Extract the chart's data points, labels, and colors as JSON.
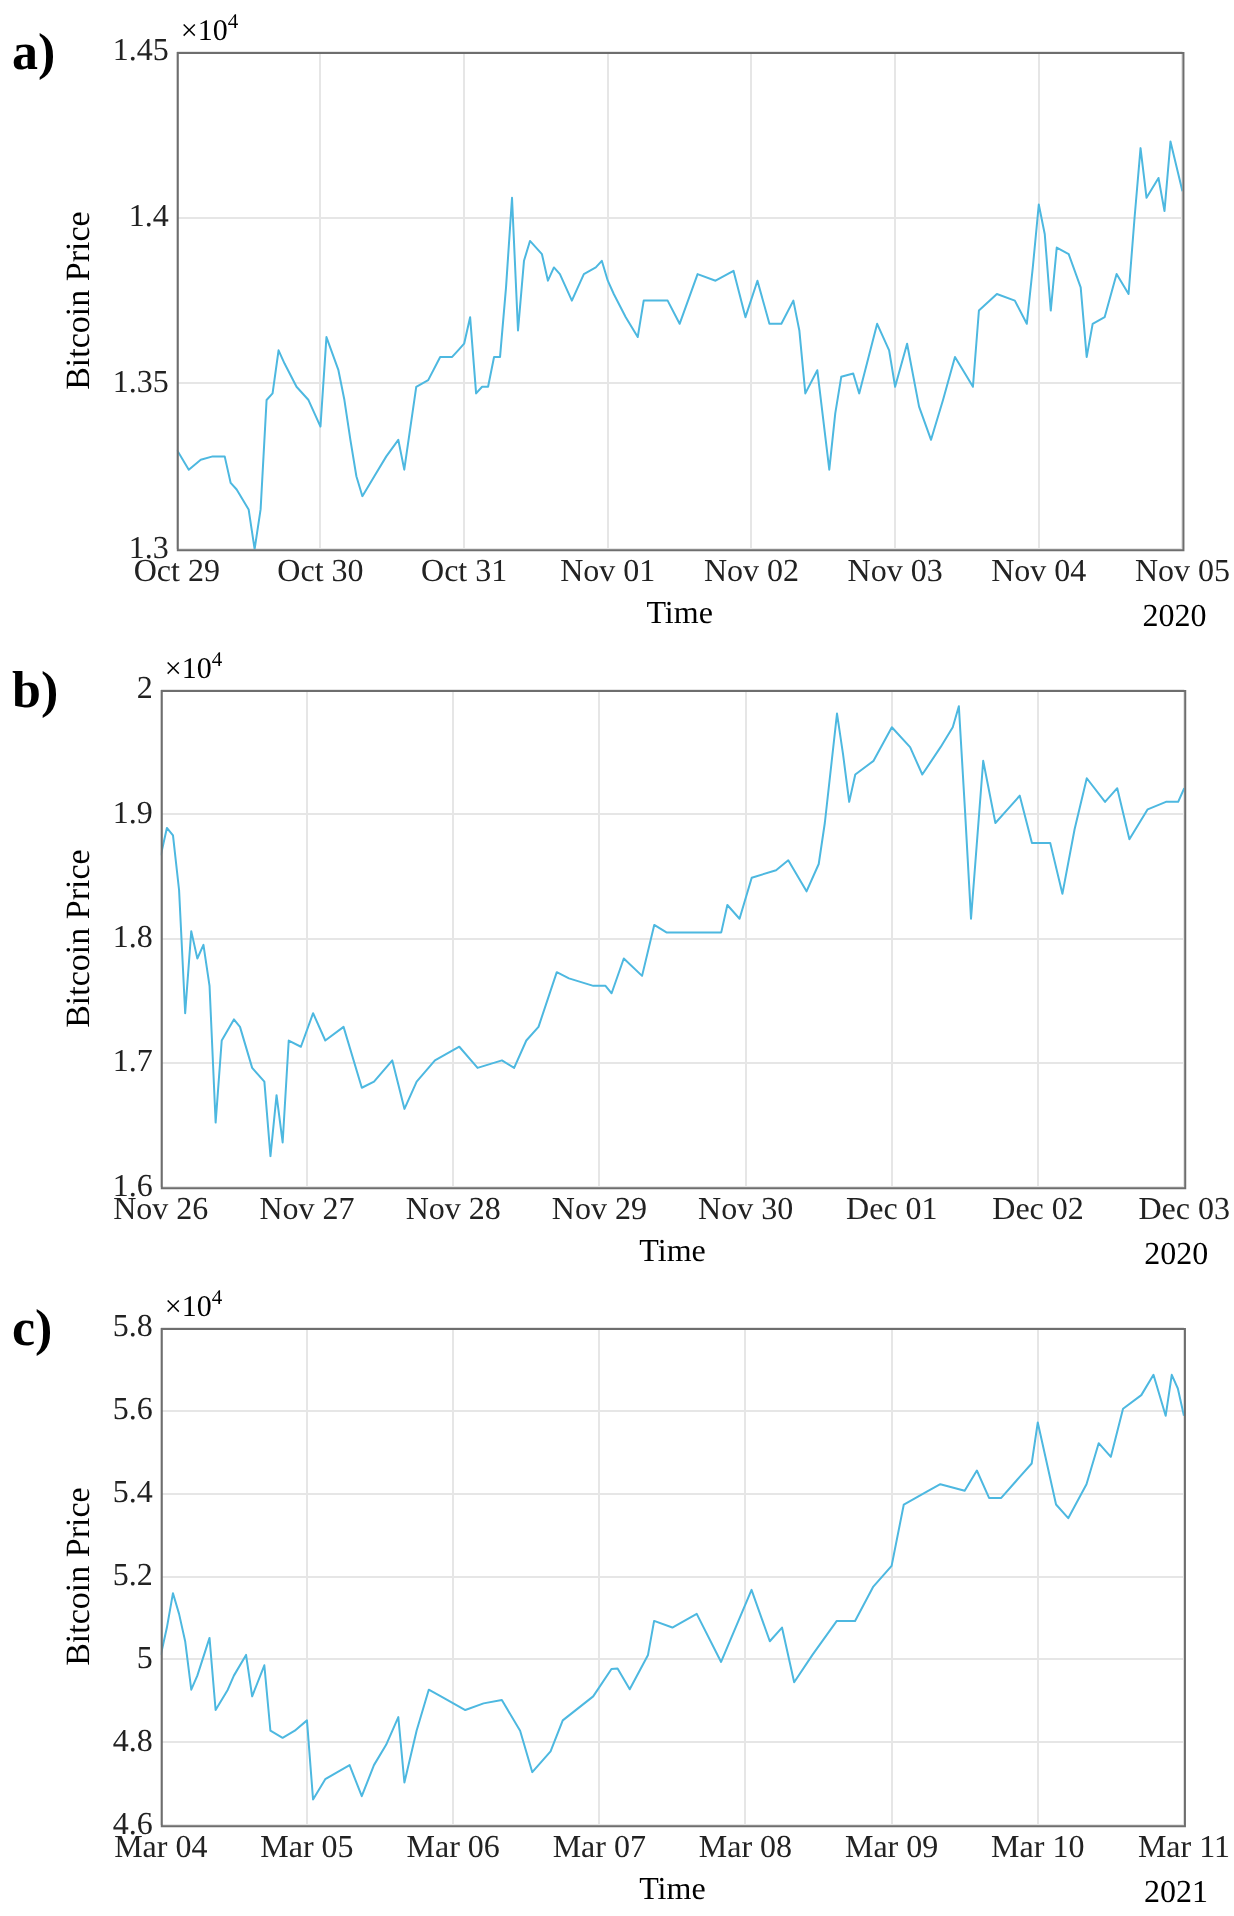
{
  "chart_data": [
    {
      "type": "line",
      "title": "a)",
      "xlabel": "Time",
      "ylabel": "Bitcoin Price",
      "annotations": [
        "×10$^{4}$",
        "2020"
      ],
      "grid": true,
      "marker": "none",
      "line_style": "solid",
      "xlim": [
        "2020-10-29",
        "2020-11-05"
      ],
      "xticks": [
        {
          "value": "2020-10-29",
          "label": "Oct 29"
        },
        {
          "value": "2020-10-30",
          "label": "Oct 30"
        },
        {
          "value": "2020-10-31",
          "label": "Oct 31"
        },
        {
          "value": "2020-11-01",
          "label": "Nov 01"
        },
        {
          "value": "2020-11-02",
          "label": "Nov 02"
        },
        {
          "value": "2020-11-03",
          "label": "Nov 03"
        },
        {
          "value": "2020-11-04",
          "label": "Nov 04"
        },
        {
          "value": "2020-11-05",
          "label": "Nov 05"
        }
      ],
      "ylim": [
        1.3,
        1.45
      ],
      "yticks": [
        1.3,
        1.35,
        1.4,
        1.45
      ],
      "series": [
        {
          "color": "#4db8e0",
          "x": [
            "2020-10-29T00:00",
            "2020-10-29T02:00",
            "2020-10-29T04:00",
            "2020-10-29T06:00",
            "2020-10-29T08:00",
            "2020-10-29T09:00",
            "2020-10-29T10:00",
            "2020-10-29T12:00",
            "2020-10-29T13:00",
            "2020-10-29T14:00",
            "2020-10-29T15:00",
            "2020-10-29T16:00",
            "2020-10-29T17:00",
            "2020-10-29T18:00",
            "2020-10-29T20:00",
            "2020-10-29T22:00",
            "2020-10-29T23:00",
            "2020-10-30T00:00",
            "2020-10-30T01:00",
            "2020-10-30T03:00",
            "2020-10-30T04:00",
            "2020-10-30T05:00",
            "2020-10-30T06:00",
            "2020-10-30T07:00",
            "2020-10-30T09:00",
            "2020-10-30T11:00",
            "2020-10-30T13:00",
            "2020-10-30T14:00",
            "2020-10-30T16:00",
            "2020-10-30T18:00",
            "2020-10-30T20:00",
            "2020-10-30T22:00",
            "2020-10-30T23:00",
            "2020-10-31T00:00",
            "2020-10-31T01:00",
            "2020-10-31T02:00",
            "2020-10-31T03:00",
            "2020-10-31T04:00",
            "2020-10-31T05:00",
            "2020-10-31T06:00",
            "2020-10-31T07:00",
            "2020-10-31T08:00",
            "2020-10-31T09:00",
            "2020-10-31T10:00",
            "2020-10-31T11:00",
            "2020-10-31T13:00",
            "2020-10-31T14:00",
            "2020-10-31T15:00",
            "2020-10-31T16:00",
            "2020-10-31T18:00",
            "2020-10-31T20:00",
            "2020-10-31T22:00",
            "2020-10-31T23:00",
            "2020-11-01T00:00",
            "2020-11-01T01:00",
            "2020-11-01T03:00",
            "2020-11-01T05:00",
            "2020-11-01T06:00",
            "2020-11-01T10:00",
            "2020-11-01T12:00",
            "2020-11-01T15:00",
            "2020-11-01T18:00",
            "2020-11-01T21:00",
            "2020-11-01T23:00",
            "2020-11-02T01:00",
            "2020-11-02T03:00",
            "2020-11-02T05:00",
            "2020-11-02T07:00",
            "2020-11-02T08:00",
            "2020-11-02T09:00",
            "2020-11-02T11:00",
            "2020-11-02T12:00",
            "2020-11-02T13:00",
            "2020-11-02T14:00",
            "2020-11-02T15:00",
            "2020-11-02T17:00",
            "2020-11-02T18:00",
            "2020-11-02T21:00",
            "2020-11-02T23:00",
            "2020-11-03T00:00",
            "2020-11-03T02:00",
            "2020-11-03T04:00",
            "2020-11-03T06:00",
            "2020-11-03T08:00",
            "2020-11-03T10:00",
            "2020-11-03T12:00",
            "2020-11-03T13:00",
            "2020-11-03T14:00",
            "2020-11-03T17:00",
            "2020-11-03T20:00",
            "2020-11-03T22:00",
            "2020-11-03T23:00",
            "2020-11-04T00:00",
            "2020-11-04T01:00",
            "2020-11-04T02:00",
            "2020-11-04T03:00",
            "2020-11-04T05:00",
            "2020-11-04T07:00",
            "2020-11-04T08:00",
            "2020-11-04T09:00",
            "2020-11-04T11:00",
            "2020-11-04T13:00",
            "2020-11-04T15:00",
            "2020-11-04T16:00",
            "2020-11-04T17:00",
            "2020-11-04T18:00",
            "2020-11-04T20:00",
            "2020-11-04T21:00",
            "2020-11-04T22:00",
            "2020-11-05T00:00"
          ],
          "values": [
            1.33,
            1.324,
            1.327,
            1.328,
            1.328,
            1.32,
            1.318,
            1.312,
            1.3,
            1.312,
            1.345,
            1.347,
            1.36,
            1.356,
            1.349,
            1.345,
            1.341,
            1.337,
            1.364,
            1.354,
            1.345,
            1.333,
            1.322,
            1.316,
            1.322,
            1.328,
            1.333,
            1.324,
            1.349,
            1.351,
            1.358,
            1.358,
            1.36,
            1.362,
            1.37,
            1.347,
            1.349,
            1.349,
            1.358,
            1.358,
            1.379,
            1.406,
            1.366,
            1.387,
            1.393,
            1.389,
            1.381,
            1.385,
            1.383,
            1.375,
            1.383,
            1.385,
            1.387,
            1.381,
            1.377,
            1.37,
            1.364,
            1.375,
            1.375,
            1.368,
            1.383,
            1.381,
            1.384,
            1.37,
            1.381,
            1.368,
            1.368,
            1.375,
            1.366,
            1.347,
            1.354,
            1.339,
            1.324,
            1.341,
            1.352,
            1.353,
            1.347,
            1.368,
            1.36,
            1.349,
            1.362,
            1.343,
            1.333,
            1.345,
            1.358,
            1.352,
            1.349,
            1.372,
            1.377,
            1.375,
            1.368,
            1.385,
            1.404,
            1.395,
            1.372,
            1.391,
            1.389,
            1.379,
            1.358,
            1.368,
            1.37,
            1.383,
            1.377,
            1.4,
            1.421,
            1.406,
            1.412,
            1.402,
            1.423,
            1.408
          ]
        }
      ]
    },
    {
      "type": "line",
      "title": "b)",
      "xlabel": "Time",
      "ylabel": "Bitcoin Price",
      "annotations": [
        "×10$^{4}$",
        "2020"
      ],
      "grid": true,
      "marker": "none",
      "line_style": "solid",
      "xlim": [
        "2020-11-26",
        "2020-12-03"
      ],
      "xticks": [
        {
          "value": "2020-11-26",
          "label": "Nov 26"
        },
        {
          "value": "2020-11-27",
          "label": "Nov 27"
        },
        {
          "value": "2020-11-28",
          "label": "Nov 28"
        },
        {
          "value": "2020-11-29",
          "label": "Nov 29"
        },
        {
          "value": "2020-11-30",
          "label": "Nov 30"
        },
        {
          "value": "2020-12-01",
          "label": "Dec 01"
        },
        {
          "value": "2020-12-02",
          "label": "Dec 02"
        },
        {
          "value": "2020-12-03",
          "label": "Dec 03"
        }
      ],
      "ylim": [
        1.6,
        2
      ],
      "yticks": [
        1.6,
        1.7,
        1.8,
        1.9,
        2
      ],
      "series": [
        {
          "color": "#4db8e0",
          "x": [
            "2020-11-26T00:00",
            "2020-11-26T01:00",
            "2020-11-26T02:00",
            "2020-11-26T03:00",
            "2020-11-26T04:00",
            "2020-11-26T05:00",
            "2020-11-26T06:00",
            "2020-11-26T07:00",
            "2020-11-26T08:00",
            "2020-11-26T09:00",
            "2020-11-26T10:00",
            "2020-11-26T12:00",
            "2020-11-26T13:00",
            "2020-11-26T15:00",
            "2020-11-26T17:00",
            "2020-11-26T18:00",
            "2020-11-26T19:00",
            "2020-11-26T20:00",
            "2020-11-26T21:00",
            "2020-11-26T23:00",
            "2020-11-27T01:00",
            "2020-11-27T03:00",
            "2020-11-27T06:00",
            "2020-11-27T09:00",
            "2020-11-27T11:00",
            "2020-11-27T14:00",
            "2020-11-27T16:00",
            "2020-11-27T18:00",
            "2020-11-27T21:00",
            "2020-11-28T01:00",
            "2020-11-28T04:00",
            "2020-11-28T08:00",
            "2020-11-28T10:00",
            "2020-11-28T12:00",
            "2020-11-28T14:00",
            "2020-11-28T17:00",
            "2020-11-28T19:00",
            "2020-11-28T23:00",
            "2020-11-29T01:00",
            "2020-11-29T02:00",
            "2020-11-29T04:00",
            "2020-11-29T07:00",
            "2020-11-29T09:00",
            "2020-11-29T11:00",
            "2020-11-29T14:00",
            "2020-11-29T20:00",
            "2020-11-29T21:00",
            "2020-11-29T23:00",
            "2020-11-30T01:00",
            "2020-11-30T05:00",
            "2020-11-30T07:00",
            "2020-11-30T10:00",
            "2020-11-30T12:00",
            "2020-11-30T13:00",
            "2020-11-30T15:00",
            "2020-11-30T16:00",
            "2020-11-30T17:00",
            "2020-11-30T18:00",
            "2020-11-30T21:00",
            "2020-12-01T00:00",
            "2020-12-01T03:00",
            "2020-12-01T05:00",
            "2020-12-01T08:00",
            "2020-12-01T10:00",
            "2020-12-01T11:00",
            "2020-12-01T12:00",
            "2020-12-01T13:00",
            "2020-12-01T15:00",
            "2020-12-01T17:00",
            "2020-12-01T19:00",
            "2020-12-01T21:00",
            "2020-12-01T23:00",
            "2020-12-02T02:00",
            "2020-12-02T04:00",
            "2020-12-02T06:00",
            "2020-12-02T08:00",
            "2020-12-02T11:00",
            "2020-12-02T13:00",
            "2020-12-02T15:00",
            "2020-12-02T18:00",
            "2020-12-02T21:00",
            "2020-12-02T23:00",
            "2020-12-03T00:00"
          ],
          "values": [
            1.867,
            1.889,
            1.883,
            1.839,
            1.74,
            1.806,
            1.784,
            1.795,
            1.762,
            1.652,
            1.718,
            1.735,
            1.729,
            1.696,
            1.685,
            1.625,
            1.674,
            1.636,
            1.718,
            1.713,
            1.74,
            1.718,
            1.729,
            1.68,
            1.685,
            1.702,
            1.663,
            1.685,
            1.702,
            1.713,
            1.696,
            1.702,
            1.696,
            1.718,
            1.729,
            1.773,
            1.768,
            1.762,
            1.762,
            1.756,
            1.784,
            1.77,
            1.811,
            1.805,
            1.805,
            1.805,
            1.827,
            1.816,
            1.849,
            1.855,
            1.863,
            1.838,
            1.86,
            1.893,
            1.981,
            1.948,
            1.91,
            1.932,
            1.943,
            1.97,
            1.954,
            1.932,
            1.954,
            1.97,
            1.987,
            1.904,
            1.816,
            1.943,
            1.893,
            1.904,
            1.915,
            1.877,
            1.877,
            1.836,
            1.888,
            1.929,
            1.91,
            1.921,
            1.88,
            1.904,
            1.91,
            1.91,
            1.921
          ]
        }
      ]
    },
    {
      "type": "line",
      "title": "c)",
      "xlabel": "Time",
      "ylabel": "Bitcoin Price",
      "annotations": [
        "×10$^{4}$",
        "2021"
      ],
      "grid": true,
      "marker": "none",
      "line_style": "solid",
      "xlim": [
        "2021-03-04",
        "2021-03-11"
      ],
      "xticks": [
        {
          "value": "2021-03-04",
          "label": "Mar 04"
        },
        {
          "value": "2021-03-05",
          "label": "Mar 05"
        },
        {
          "value": "2021-03-06",
          "label": "Mar 06"
        },
        {
          "value": "2021-03-07",
          "label": "Mar 07"
        },
        {
          "value": "2021-03-08",
          "label": "Mar 08"
        },
        {
          "value": "2021-03-09",
          "label": "Mar 09"
        },
        {
          "value": "2021-03-10",
          "label": "Mar 10"
        },
        {
          "value": "2021-03-11",
          "label": "Mar 11"
        }
      ],
      "ylim": [
        4.6,
        5.8
      ],
      "yticks": [
        4.6,
        4.8,
        5,
        5.2,
        5.4,
        5.6,
        5.8
      ],
      "series": [
        {
          "color": "#4db8e0",
          "x": [
            "2021-03-04T00:00",
            "2021-03-04T01:00",
            "2021-03-04T02:00",
            "2021-03-04T03:00",
            "2021-03-04T04:00",
            "2021-03-04T05:00",
            "2021-03-04T06:00",
            "2021-03-04T08:00",
            "2021-03-04T09:00",
            "2021-03-04T11:00",
            "2021-03-04T12:00",
            "2021-03-04T14:00",
            "2021-03-04T15:00",
            "2021-03-04T17:00",
            "2021-03-04T18:00",
            "2021-03-04T20:00",
            "2021-03-04T22:00",
            "2021-03-05T00:00",
            "2021-03-05T01:00",
            "2021-03-05T03:00",
            "2021-03-05T05:00",
            "2021-03-05T07:00",
            "2021-03-05T09:00",
            "2021-03-05T11:00",
            "2021-03-05T13:00",
            "2021-03-05T15:00",
            "2021-03-05T16:00",
            "2021-03-05T18:00",
            "2021-03-05T20:00",
            "2021-03-05T22:00",
            "2021-03-06T02:00",
            "2021-03-06T05:00",
            "2021-03-06T08:00",
            "2021-03-06T11:00",
            "2021-03-06T13:00",
            "2021-03-06T16:00",
            "2021-03-06T18:00",
            "2021-03-06T23:00",
            "2021-03-07T02:00",
            "2021-03-07T03:00",
            "2021-03-07T05:00",
            "2021-03-07T08:00",
            "2021-03-07T09:00",
            "2021-03-07T12:00",
            "2021-03-07T16:00",
            "2021-03-07T20:00",
            "2021-03-08T01:00",
            "2021-03-08T04:00",
            "2021-03-08T06:00",
            "2021-03-08T08:00",
            "2021-03-08T11:00",
            "2021-03-08T15:00",
            "2021-03-08T18:00",
            "2021-03-08T21:00",
            "2021-03-09T00:00",
            "2021-03-09T02:00",
            "2021-03-09T06:00",
            "2021-03-09T08:00",
            "2021-03-09T12:00",
            "2021-03-09T14:00",
            "2021-03-09T16:00",
            "2021-03-09T18:00",
            "2021-03-09T21:00",
            "2021-03-09T23:00",
            "2021-03-10T00:00",
            "2021-03-10T03:00",
            "2021-03-10T05:00",
            "2021-03-10T08:00",
            "2021-03-10T10:00",
            "2021-03-10T12:00",
            "2021-03-10T14:00",
            "2021-03-10T17:00",
            "2021-03-10T19:00",
            "2021-03-10T21:00",
            "2021-03-10T22:00",
            "2021-03-10T23:00",
            "2021-03-11T00:00"
          ],
          "values": [
            5.011,
            5.077,
            5.16,
            5.11,
            5.044,
            4.927,
            4.961,
            5.052,
            4.878,
            4.927,
            4.961,
            5.011,
            4.911,
            4.986,
            4.828,
            4.811,
            4.828,
            4.853,
            4.662,
            4.711,
            4.728,
            4.745,
            4.67,
            4.745,
            4.794,
            4.861,
            4.703,
            4.828,
            4.927,
            4.911,
            4.878,
            4.894,
            4.902,
            4.828,
            4.728,
            4.778,
            4.853,
            4.911,
            4.977,
            4.978,
            4.928,
            5.011,
            5.093,
            5.077,
            5.11,
            4.994,
            5.168,
            5.044,
            5.077,
            4.945,
            5.011,
            5.093,
            5.093,
            5.176,
            5.226,
            5.374,
            5.407,
            5.423,
            5.407,
            5.456,
            5.39,
            5.39,
            5.44,
            5.473,
            5.572,
            5.374,
            5.341,
            5.423,
            5.522,
            5.489,
            5.605,
            5.638,
            5.687,
            5.588,
            5.687,
            5.654,
            5.588
          ]
        }
      ]
    }
  ]
}
